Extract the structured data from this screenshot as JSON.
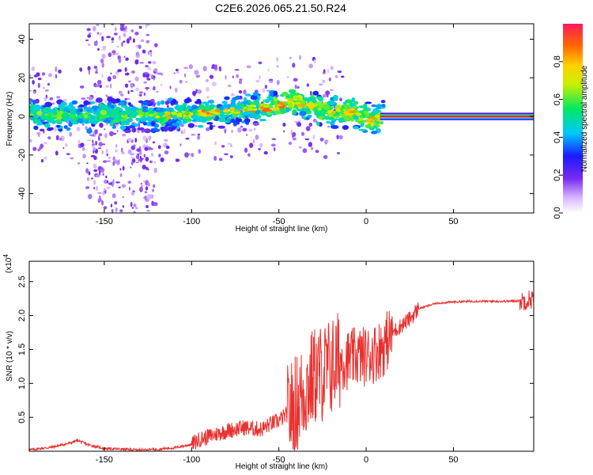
{
  "title": "C2E6.2026.065.21.50.R24",
  "chart_data": [
    {
      "type": "heatmap",
      "name": "spectrogram",
      "xlabel": "Height of straight line (km)",
      "ylabel": "Frequency (Hz)",
      "xlim": [
        -193,
        96
      ],
      "ylim": [
        -50,
        48
      ],
      "xticks": [
        -150,
        -100,
        -50,
        0,
        50
      ],
      "xtick_labels": [
        "-150",
        "-100",
        "-50",
        "0",
        "50"
      ],
      "yticks": [
        -40,
        -20,
        0,
        20,
        40
      ],
      "ytick_labels": [
        "-40",
        "-20",
        "0",
        "20",
        "40"
      ],
      "ridge": {
        "x": [
          -193,
          -180,
          -170,
          -160,
          -150,
          -140,
          -130,
          -120,
          -110,
          -100,
          -90,
          -80,
          -70,
          -60,
          -50,
          -45,
          -40,
          -35,
          -30,
          -25,
          -20,
          -15,
          -10,
          -5,
          0,
          5,
          10,
          20,
          40,
          60,
          80,
          96
        ],
        "y": [
          2,
          0,
          1,
          0,
          2,
          0,
          1,
          0,
          1,
          1,
          2,
          2,
          4,
          4,
          5,
          7,
          8,
          6,
          5,
          3,
          2,
          2,
          2,
          2,
          0,
          -2,
          0,
          0,
          0,
          0,
          0,
          0
        ]
      },
      "colorbar": {
        "label": "Normalized spectral amplitude",
        "range": [
          0,
          1
        ],
        "ticks": [
          0,
          0.2,
          0.4,
          0.6,
          0.8
        ],
        "tick_labels": [
          "0.0",
          "0.2",
          "0.4",
          "0.6",
          "0.8"
        ]
      }
    },
    {
      "type": "line",
      "name": "snr",
      "xlabel": "Height of straight line (km)",
      "ylabel": "SNR (10 * v/v)",
      "multiplier": "(x10",
      "multiplier_exp": "4",
      "xlim": [
        -193,
        96
      ],
      "ylim": [
        0,
        2.8
      ],
      "xticks": [
        -150,
        -100,
        -50,
        0,
        50
      ],
      "xtick_labels": [
        "-150",
        "-100",
        "-50",
        "0",
        "50"
      ],
      "yticks": [
        0.5,
        1.0,
        1.5,
        2.0,
        2.5
      ],
      "ytick_labels": [
        "0.5",
        "1.0",
        "1.5",
        "2.0",
        "2.5"
      ],
      "color": "#e8312f",
      "series": [
        {
          "name": "SNR",
          "x": [
            -193,
            -180,
            -170,
            -165,
            -160,
            -150,
            -140,
            -130,
            -120,
            -110,
            -100,
            -95,
            -90,
            -80,
            -70,
            -60,
            -55,
            -50,
            -45,
            -40,
            -35,
            -30,
            -25,
            -20,
            -15,
            -10,
            -5,
            0,
            5,
            10,
            15,
            20,
            25,
            30,
            40,
            50,
            60,
            70,
            80,
            90,
            96
          ],
          "y": [
            0.02,
            0.06,
            0.12,
            0.16,
            0.1,
            0.04,
            0.03,
            0.02,
            0.03,
            0.05,
            0.1,
            0.18,
            0.22,
            0.3,
            0.35,
            0.32,
            0.4,
            0.45,
            0.55,
            0.7,
            0.9,
            1.1,
            1.15,
            1.25,
            1.35,
            1.35,
            1.4,
            1.4,
            1.45,
            1.55,
            1.75,
            1.85,
            1.95,
            2.1,
            2.18,
            2.2,
            2.21,
            2.21,
            2.21,
            2.22,
            2.25
          ]
        }
      ]
    }
  ]
}
